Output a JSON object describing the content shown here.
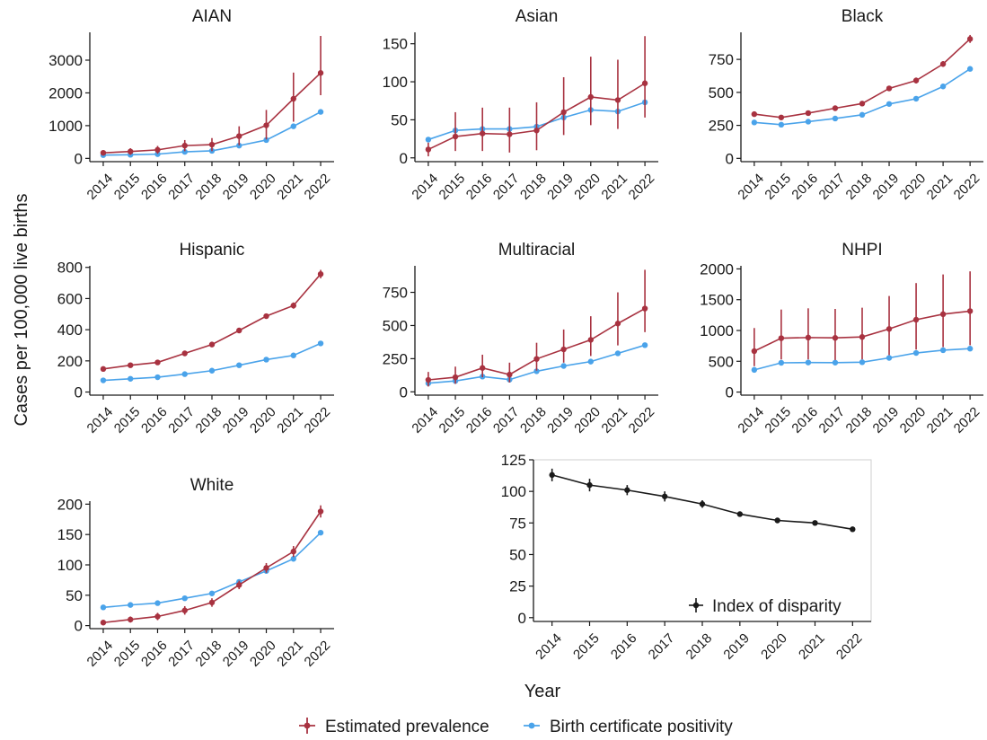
{
  "figure": {
    "ylabel": "Cases per 100,000 live births",
    "xlabel": "Year",
    "legend": {
      "placement": "bottom",
      "items": [
        {
          "label": "Estimated prevalence",
          "color": "#a83240"
        },
        {
          "label": "Birth certificate positivity",
          "color": "#4aa3ea"
        }
      ]
    }
  },
  "chart_data": [
    {
      "type": "line",
      "title": "AIAN",
      "x": [
        2014,
        2015,
        2016,
        2017,
        2018,
        2019,
        2020,
        2021,
        2022
      ],
      "ylim": [
        -100,
        3850
      ],
      "yticks": [
        0,
        1000,
        2000,
        3000
      ],
      "series": [
        {
          "name": "Estimated prevalence",
          "color": "#a83240",
          "values": [
            170,
            210,
            260,
            390,
            420,
            680,
            1010,
            1820,
            2610
          ],
          "lower": [
            90,
            110,
            140,
            220,
            220,
            400,
            580,
            1120,
            1930
          ],
          "upper": [
            250,
            310,
            380,
            560,
            620,
            980,
            1480,
            2620,
            3740
          ]
        },
        {
          "name": "Birth certificate positivity",
          "color": "#4aa3ea",
          "values": [
            100,
            110,
            130,
            200,
            230,
            390,
            560,
            980,
            1420
          ]
        }
      ]
    },
    {
      "type": "line",
      "title": "Asian",
      "x": [
        2014,
        2015,
        2016,
        2017,
        2018,
        2019,
        2020,
        2021,
        2022
      ],
      "ylim": [
        -5,
        165
      ],
      "yticks": [
        0,
        50,
        100,
        150
      ],
      "series": [
        {
          "name": "Estimated prevalence",
          "color": "#a83240",
          "values": [
            11,
            28,
            32,
            31,
            36,
            60,
            80,
            76,
            98
          ],
          "lower": [
            2,
            9,
            9,
            7,
            10,
            30,
            43,
            38,
            53
          ],
          "upper": [
            20,
            60,
            66,
            66,
            73,
            106,
            133,
            129,
            160
          ]
        },
        {
          "name": "Birth certificate positivity",
          "color": "#4aa3ea",
          "values": [
            24,
            36,
            38,
            38,
            41,
            53,
            63,
            61,
            73
          ]
        }
      ]
    },
    {
      "type": "line",
      "title": "Black",
      "x": [
        2014,
        2015,
        2016,
        2017,
        2018,
        2019,
        2020,
        2021,
        2022
      ],
      "ylim": [
        -25,
        955
      ],
      "yticks": [
        0,
        250,
        500,
        750
      ],
      "series": [
        {
          "name": "Estimated prevalence",
          "color": "#a83240",
          "values": [
            335,
            310,
            343,
            380,
            415,
            530,
            590,
            715,
            905
          ],
          "lower": [
            320,
            297,
            328,
            365,
            398,
            512,
            568,
            693,
            875
          ],
          "upper": [
            350,
            323,
            358,
            395,
            432,
            548,
            612,
            737,
            935
          ]
        },
        {
          "name": "Birth certificate positivity",
          "color": "#4aa3ea",
          "values": [
            272,
            255,
            278,
            302,
            330,
            412,
            452,
            545,
            678
          ]
        }
      ]
    },
    {
      "type": "line",
      "title": "Hispanic",
      "x": [
        2014,
        2015,
        2016,
        2017,
        2018,
        2019,
        2020,
        2021,
        2022
      ],
      "ylim": [
        -20,
        810
      ],
      "yticks": [
        0,
        200,
        400,
        600,
        800
      ],
      "series": [
        {
          "name": "Estimated prevalence",
          "color": "#a83240",
          "values": [
            148,
            172,
            190,
            248,
            305,
            395,
            487,
            555,
            757
          ],
          "lower": [
            141,
            165,
            182,
            238,
            295,
            382,
            472,
            535,
            730
          ],
          "upper": [
            155,
            179,
            198,
            258,
            315,
            408,
            502,
            575,
            784
          ]
        },
        {
          "name": "Birth certificate positivity",
          "color": "#4aa3ea",
          "values": [
            75,
            85,
            95,
            115,
            137,
            172,
            208,
            235,
            312
          ]
        }
      ]
    },
    {
      "type": "line",
      "title": "Multiracial",
      "x": [
        2014,
        2015,
        2016,
        2017,
        2018,
        2019,
        2020,
        2021,
        2022
      ],
      "ylim": [
        -25,
        950
      ],
      "yticks": [
        0,
        250,
        500,
        750
      ],
      "series": [
        {
          "name": "Estimated prevalence",
          "color": "#a83240",
          "values": [
            90,
            110,
            180,
            130,
            248,
            320,
            392,
            515,
            628
          ],
          "lower": [
            40,
            60,
            110,
            70,
            160,
            220,
            270,
            350,
            450
          ],
          "upper": [
            150,
            190,
            280,
            220,
            370,
            470,
            570,
            750,
            920
          ]
        },
        {
          "name": "Birth certificate positivity",
          "color": "#4aa3ea",
          "values": [
            65,
            82,
            115,
            92,
            155,
            195,
            228,
            290,
            352
          ]
        }
      ]
    },
    {
      "type": "line",
      "title": "NHPI",
      "x": [
        2014,
        2015,
        2016,
        2017,
        2018,
        2019,
        2020,
        2021,
        2022
      ],
      "ylim": [
        -50,
        2050
      ],
      "yticks": [
        0,
        500,
        1000,
        1500,
        2000
      ],
      "series": [
        {
          "name": "Estimated prevalence",
          "color": "#a83240",
          "values": [
            665,
            875,
            885,
            880,
            895,
            1025,
            1175,
            1265,
            1315
          ],
          "lower": [
            420,
            530,
            530,
            520,
            530,
            600,
            690,
            730,
            760
          ],
          "upper": [
            1040,
            1340,
            1360,
            1350,
            1370,
            1560,
            1770,
            1910,
            1960
          ]
        },
        {
          "name": "Birth certificate positivity",
          "color": "#4aa3ea",
          "values": [
            360,
            475,
            480,
            478,
            485,
            555,
            635,
            680,
            705
          ]
        }
      ]
    },
    {
      "type": "line",
      "title": "White",
      "x": [
        2014,
        2015,
        2016,
        2017,
        2018,
        2019,
        2020,
        2021,
        2022
      ],
      "ylim": [
        -5,
        205
      ],
      "yticks": [
        0,
        50,
        100,
        150,
        200
      ],
      "series": [
        {
          "name": "Estimated prevalence",
          "color": "#a83240",
          "values": [
            5,
            10,
            15,
            25,
            38,
            67,
            95,
            122,
            188
          ],
          "lower": [
            1,
            5,
            9,
            18,
            31,
            60,
            87,
            113,
            178
          ],
          "upper": [
            9,
            15,
            21,
            32,
            45,
            74,
            103,
            131,
            198
          ]
        },
        {
          "name": "Birth certificate positivity",
          "color": "#4aa3ea",
          "values": [
            30,
            34,
            37,
            45,
            53,
            72,
            90,
            110,
            153
          ]
        }
      ]
    },
    {
      "type": "line",
      "title": "",
      "x": [
        2014,
        2015,
        2016,
        2017,
        2018,
        2019,
        2020,
        2021,
        2022
      ],
      "ylim": [
        -3,
        125
      ],
      "yticks": [
        0,
        25,
        50,
        75,
        100,
        125
      ],
      "box": true,
      "legend": {
        "label": "Index of disparity",
        "placement": "bottom-right"
      },
      "series": [
        {
          "name": "Index of disparity",
          "color": "#1a1a1a",
          "values": [
            113,
            105,
            101,
            96,
            90,
            82,
            77,
            75,
            70
          ],
          "lower": [
            108,
            100,
            97,
            92,
            87,
            80,
            75,
            73,
            68
          ],
          "upper": [
            118,
            110,
            105,
            100,
            93,
            84,
            79,
            77,
            72
          ]
        }
      ]
    }
  ]
}
